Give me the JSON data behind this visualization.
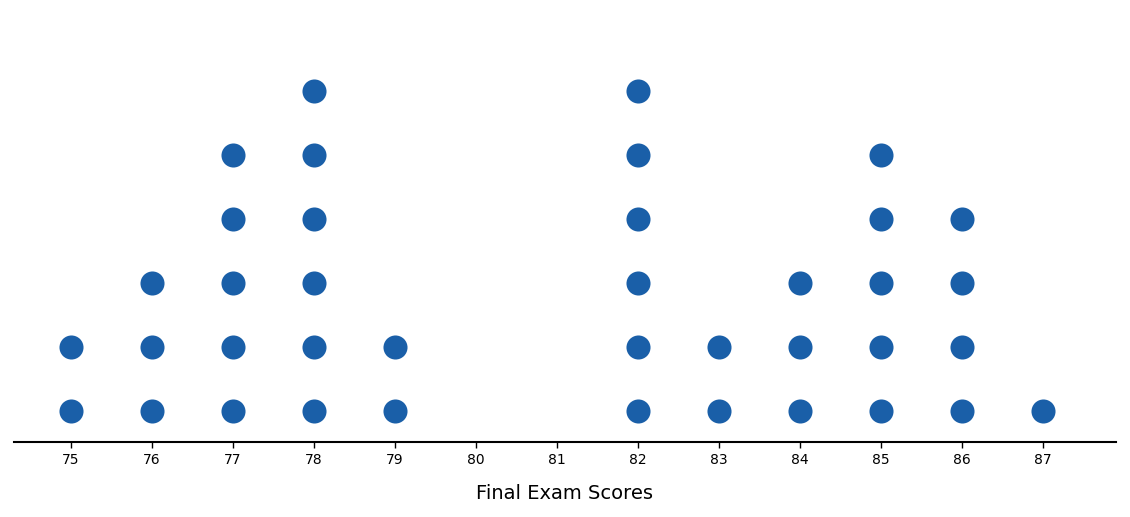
{
  "counts": {
    "75": 2,
    "76": 3,
    "77": 5,
    "78": 6,
    "79": 2,
    "80": 0,
    "81": 0,
    "82": 6,
    "83": 2,
    "84": 3,
    "85": 5,
    "86": 4,
    "87": 1
  },
  "xlabel": "Final Exam Scores",
  "dot_color": "#1a5fa8",
  "dot_size": 300,
  "xlim": [
    74.3,
    87.9
  ],
  "ylim": [
    0.4,
    7.2
  ],
  "x_ticks": [
    75,
    76,
    77,
    78,
    79,
    80,
    81,
    82,
    83,
    84,
    85,
    86,
    87
  ],
  "xlabel_fontsize": 14,
  "tick_fontsize": 12,
  "background_color": "#ffffff"
}
